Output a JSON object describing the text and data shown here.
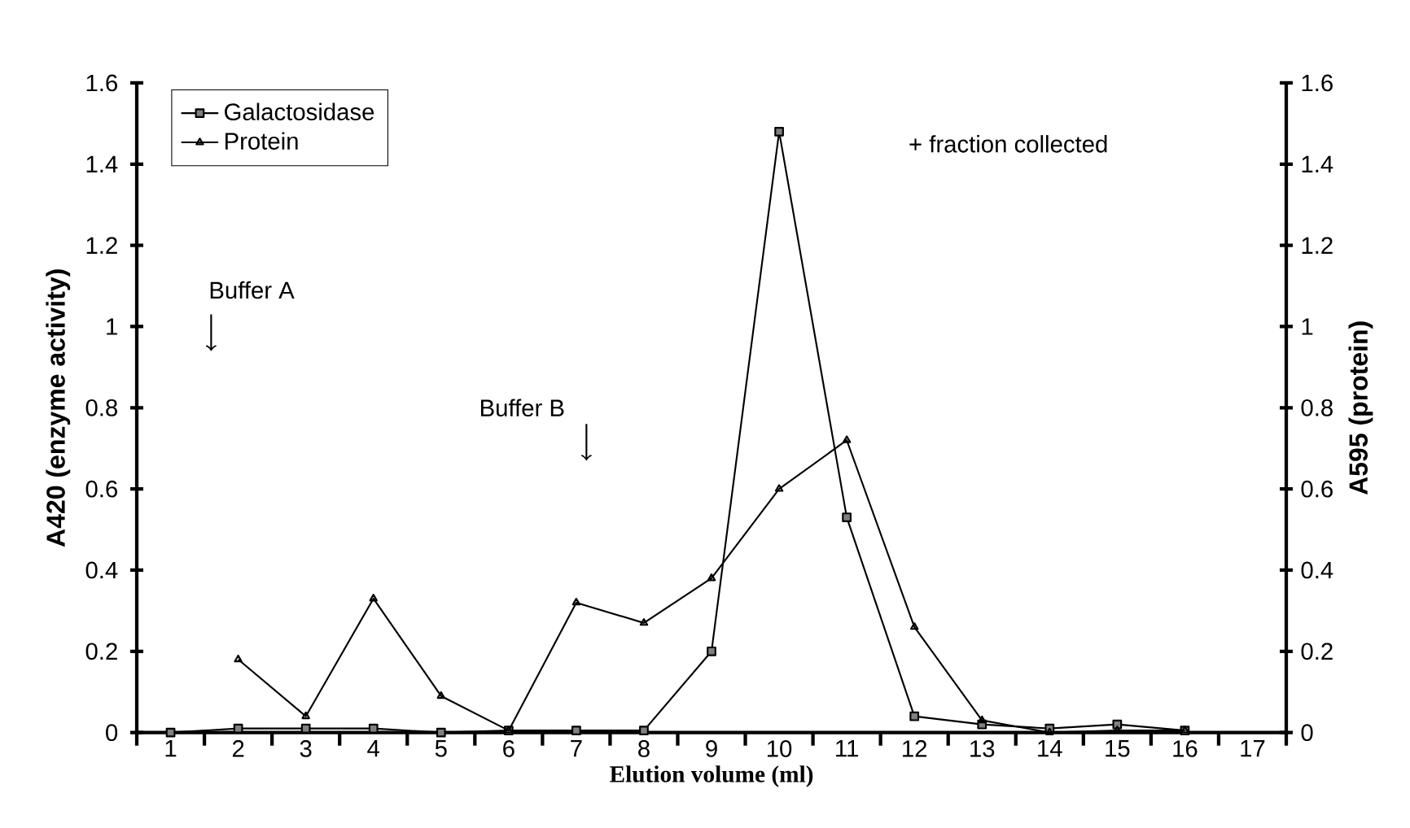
{
  "chart_data": {
    "type": "line",
    "xlabel": "Elution volume (ml)",
    "ylabel": "A420 (enzyme activity)",
    "y2label": "A595 (protein)",
    "categories": [
      "1",
      "2",
      "3",
      "4",
      "5",
      "6",
      "7",
      "8",
      "9",
      "10",
      "11",
      "12",
      "13",
      "14",
      "15",
      "16",
      "17"
    ],
    "series": [
      {
        "name": "Galactosidase",
        "color": "#000000",
        "marker": "square",
        "values": [
          0,
          0.01,
          0.01,
          0.01,
          0,
          0.005,
          0.005,
          0.005,
          0.2,
          1.48,
          0.53,
          0.04,
          0.02,
          0.01,
          0.02,
          0.005,
          null
        ]
      },
      {
        "name": "Protein",
        "color": "#000000",
        "marker": "triangle",
        "axis": "y2",
        "values": [
          null,
          0.18,
          0.04,
          0.33,
          0.09,
          0.005,
          0.32,
          0.27,
          0.38,
          0.6,
          0.72,
          0.26,
          0.03,
          0,
          0.005,
          0.005,
          null
        ]
      }
    ],
    "ylim": [
      0,
      1.6
    ],
    "yticks": [
      0,
      0.2,
      0.4,
      0.6,
      0.8,
      1,
      1.2,
      1.4,
      1.6
    ],
    "y2lim": [
      0,
      1.6
    ],
    "y2ticks": [
      0,
      0.2,
      0.4,
      0.6,
      0.8,
      1,
      1.2,
      1.4,
      1.6
    ],
    "legend": "top left",
    "grid": false,
    "annotations": [
      "Buffer A",
      "Buffer B",
      "+ fraction collected"
    ]
  }
}
